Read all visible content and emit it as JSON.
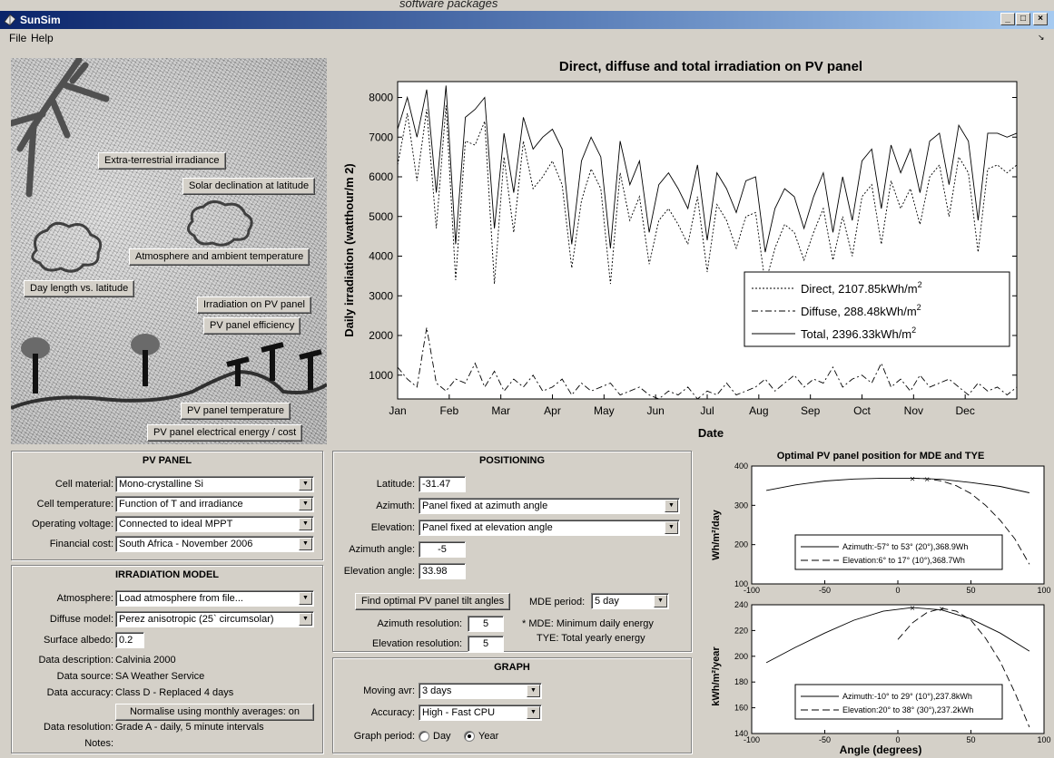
{
  "caption": "software packages",
  "window": {
    "title": "SunSim",
    "menu": [
      "File",
      "Help"
    ],
    "controls": [
      "_",
      "□",
      "×"
    ]
  },
  "scene": {
    "buttons": [
      "Extra-terrestrial irradiance",
      "Solar declination at latitude",
      "Atmosphere and ambient temperature",
      "Day length vs. latitude",
      "Irradiation on PV panel",
      "PV panel efficiency",
      "PV panel temperature",
      "PV panel electrical energy / cost"
    ]
  },
  "main_chart": {
    "chart_data": {
      "type": "line",
      "title": "Direct, diffuse and total irradiation on PV panel",
      "xlabel": "Date",
      "ylabel": "Daily irradiation (watthour/m 2)",
      "ylim": [
        400,
        8400
      ],
      "yticks": [
        1000,
        2000,
        3000,
        4000,
        5000,
        6000,
        7000,
        8000
      ],
      "xticks": [
        "Jan",
        "Feb",
        "Mar",
        "Apr",
        "May",
        "Jun",
        "Jul",
        "Aug",
        "Sep",
        "Oct",
        "Nov",
        "Dec"
      ],
      "legend_position": "lower-right",
      "legend": [
        {
          "label": "Direct, 2107.85kWh/m",
          "sup": "2",
          "style": "dotted"
        },
        {
          "label": "Diffuse, 288.48kWh/m",
          "sup": "2",
          "style": "dashdot"
        },
        {
          "label": "Total, 2396.33kWh/m",
          "sup": "2",
          "style": "solid"
        }
      ],
      "series": [
        {
          "name": "Direct, 2107.85kWh/m2",
          "values": [
            6300,
            7600,
            5900,
            7700,
            4700,
            7800,
            3400,
            6900,
            6800,
            7400,
            3300,
            6500,
            4600,
            6900,
            5700,
            6000,
            6400,
            5800,
            3700,
            5400,
            6200,
            5700,
            3300,
            6100,
            4900,
            5500,
            3800,
            4900,
            5200,
            4800,
            4300,
            5500,
            3600,
            5300,
            4900,
            4200,
            5000,
            5100,
            3300,
            4200,
            4800,
            4600,
            3900,
            4600,
            5200,
            3900,
            5000,
            4000,
            5500,
            5800,
            4300,
            5900,
            5200,
            5700,
            4800,
            6000,
            6300,
            5000,
            6500,
            6100,
            4100,
            6200,
            6300,
            6100,
            6300
          ]
        },
        {
          "name": "Diffuse, 288.48kWh/m2",
          "values": [
            1200,
            900,
            700,
            2200,
            800,
            600,
            900,
            800,
            1300,
            700,
            1100,
            600,
            900,
            700,
            1000,
            600,
            700,
            900,
            500,
            800,
            600,
            700,
            800,
            500,
            600,
            700,
            500,
            400,
            600,
            500,
            700,
            400,
            600,
            500,
            800,
            500,
            600,
            700,
            900,
            600,
            800,
            1000,
            700,
            900,
            800,
            1200,
            700,
            900,
            1000,
            800,
            1300,
            700,
            900,
            600,
            1000,
            700,
            800,
            900,
            700,
            500,
            800,
            600,
            700,
            500,
            700
          ]
        },
        {
          "name": "Total, 2396.33kWh/m2",
          "values": [
            7200,
            8000,
            7000,
            8200,
            5600,
            8300,
            4300,
            7500,
            7700,
            8000,
            4700,
            7100,
            5600,
            7500,
            6700,
            7000,
            7200,
            6700,
            4300,
            6400,
            7000,
            6500,
            4200,
            6900,
            5800,
            6400,
            4600,
            5800,
            6100,
            5700,
            5200,
            6300,
            4400,
            6100,
            5700,
            5100,
            5900,
            6000,
            4100,
            5200,
            5700,
            5500,
            4700,
            5500,
            6100,
            4600,
            6000,
            4900,
            6400,
            6700,
            5200,
            6800,
            6100,
            6700,
            5600,
            6900,
            7100,
            5800,
            7300,
            6900,
            4900,
            7100,
            7100,
            7000,
            7100
          ]
        }
      ]
    }
  },
  "pv_panel": {
    "title": "PV PANEL",
    "fields": [
      {
        "label": "Cell material:",
        "value": "Mono-crystalline Si"
      },
      {
        "label": "Cell temperature:",
        "value": "Function of T and irradiance"
      },
      {
        "label": "Operating voltage:",
        "value": "Connected to ideal MPPT"
      },
      {
        "label": "Financial cost:",
        "value": "South Africa - November 2006"
      }
    ]
  },
  "irradiation_model": {
    "title": "IRRADIATION MODEL",
    "atmosphere_label": "Atmosphere:",
    "atmosphere_value": "Load atmosphere from file...",
    "diffuse_label": "Diffuse model:",
    "diffuse_value": "Perez anisotropic (25` circumsolar)",
    "albedo_label": "Surface albedo:",
    "albedo_value": "0.2",
    "desc_label": "Data description:",
    "desc_value": "Calvinia 2000",
    "source_label": "Data source:",
    "source_value": "SA Weather Service",
    "accuracy_label": "Data accuracy:",
    "accuracy_value": "Class D - Replaced 4 days",
    "normalise_button": "Normalise using monthly averages: on",
    "resolution_label": "Data resolution:",
    "resolution_value": "Grade A - daily, 5 minute intervals",
    "notes_label": "Notes:"
  },
  "positioning": {
    "title": "POSITIONING",
    "latitude_label": "Latitude:",
    "latitude_value": "-31.47",
    "azimuth_label": "Azimuth:",
    "azimuth_value": "Panel fixed at azimuth angle",
    "elevation_label": "Elevation:",
    "elevation_value": "Panel fixed at elevation angle",
    "azimuth_angle_label": "Azimuth angle:",
    "azimuth_angle_value": "-5",
    "elevation_angle_label": "Elevation angle:",
    "elevation_angle_value": "33.98",
    "find_button": "Find optimal PV panel tilt angles",
    "mde_period_label": "MDE period:",
    "mde_period_value": "5 day",
    "az_res_label": "Azimuth resolution:",
    "az_res_value": "5",
    "el_res_label": "Elevation resolution:",
    "el_res_value": "5",
    "note1": "* MDE: Minimum daily energy",
    "note2": "TYE: Total yearly energy"
  },
  "graph": {
    "title": "GRAPH",
    "moving_label": "Moving avr:",
    "moving_value": "3 days",
    "accuracy_label": "Accuracy:",
    "accuracy_value": "High - Fast CPU",
    "period_label": "Graph period:",
    "period_day": "Day",
    "period_year": "Year"
  },
  "optimal_charts": {
    "chart_data": [
      {
        "type": "line",
        "title": "Optimal PV panel position for MDE and TYE",
        "ylabel": "Wh/m²/day",
        "ylim": [
          100,
          400
        ],
        "yticks": [
          100,
          200,
          300,
          400
        ],
        "xlim": [
          -100,
          100
        ],
        "xticks": [
          -100,
          -50,
          0,
          50,
          100
        ],
        "legend": [
          "Azimuth:-57° to 53° (20°),368.9Wh",
          "Elevation:6° to 17° (10°),368.7Wh"
        ],
        "series": [
          {
            "name": "Azimuth:-57° to 53° (20°),368.9Wh",
            "x": [
              -90,
              -70,
              -50,
              -30,
              -10,
              10,
              20,
              30,
              50,
              70,
              90
            ],
            "values": [
              338,
              352,
              362,
              367,
              369,
              369,
              368,
              366,
              358,
              348,
              332
            ]
          },
          {
            "name": "Elevation:6° to 17° (10°),368.7Wh",
            "x": [
              10,
              20,
              30,
              40,
              50,
              60,
              70,
              80,
              90
            ],
            "values": [
              369,
              368,
              362,
              350,
              330,
              300,
              262,
              215,
              150
            ]
          }
        ]
      },
      {
        "type": "line",
        "ylabel": "kWh/m²/year",
        "xlabel": "Angle (degrees)",
        "ylim": [
          140,
          240
        ],
        "yticks": [
          140,
          160,
          180,
          200,
          220,
          240
        ],
        "xlim": [
          -100,
          100
        ],
        "xticks": [
          -100,
          -50,
          0,
          50,
          100
        ],
        "legend": [
          "Azimuth:-10° to 29° (10°),237.8kWh",
          "Elevation:20° to 38° (30°),237.2kWh"
        ],
        "series": [
          {
            "name": "Azimuth:-10° to 29° (10°),237.8kWh",
            "x": [
              -90,
              -70,
              -50,
              -30,
              -10,
              10,
              30,
              50,
              70,
              90
            ],
            "values": [
              195,
              207,
              218,
              228,
              235,
              237.8,
              236,
              229,
              218,
              204
            ]
          },
          {
            "name": "Elevation:20° to 38° (30°),237.2kWh",
            "x": [
              0,
              10,
              20,
              30,
              40,
              50,
              60,
              70,
              80,
              90
            ],
            "values": [
              213,
              226,
              234,
              237.2,
              235,
              228,
              214,
              196,
              172,
              145
            ]
          }
        ]
      }
    ]
  }
}
